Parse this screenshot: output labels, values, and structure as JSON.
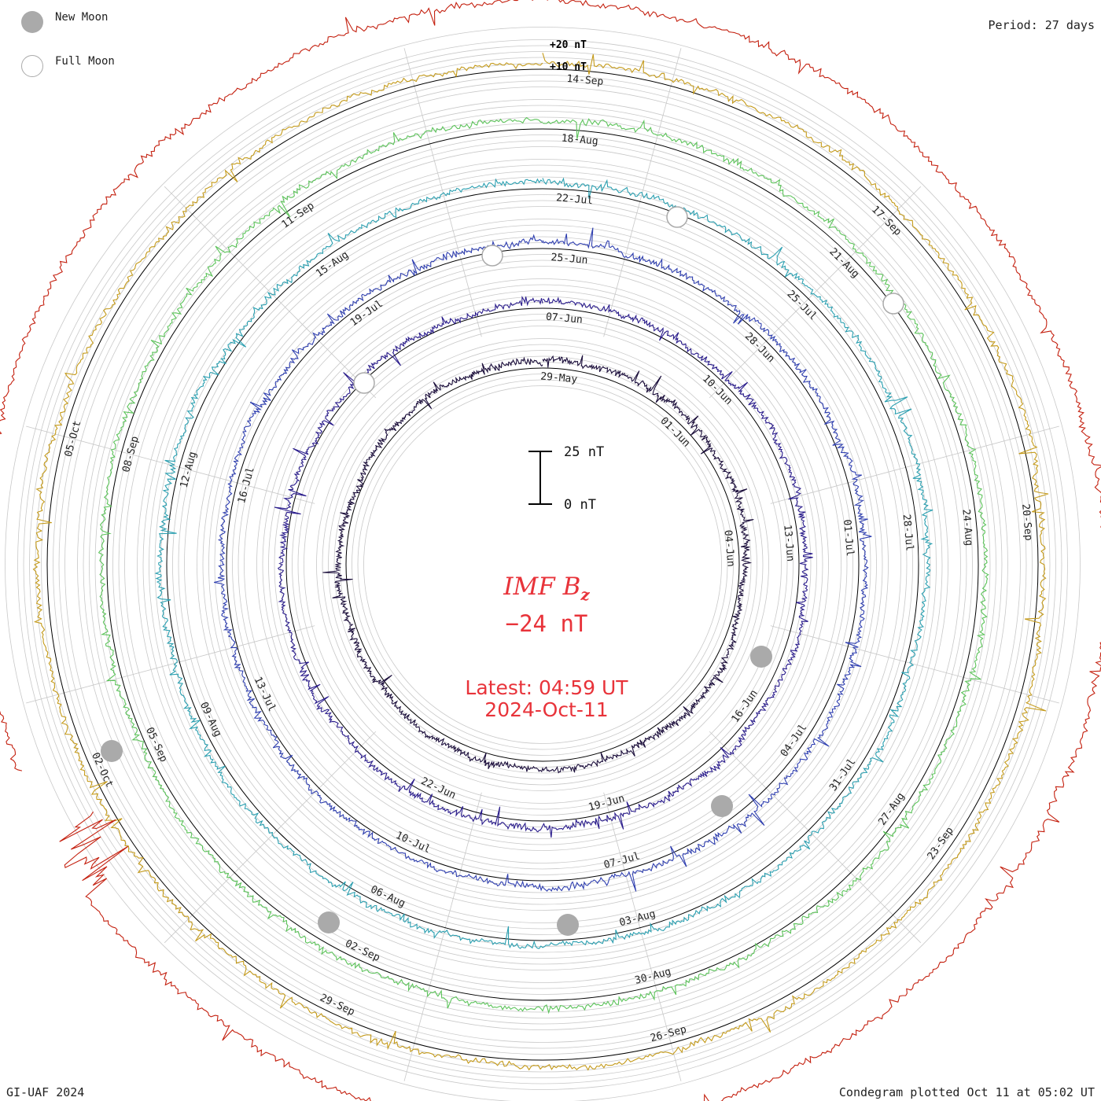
{
  "legend": {
    "new_moon_label": "New Moon",
    "full_moon_label": "Full Moon"
  },
  "period_label": "Period: 27 days",
  "credit": "GI-UAF 2024",
  "plotted_label": "Condegram plotted Oct 11 at 05:02 UT",
  "center": {
    "title_main": "IMF B",
    "title_sub": "z",
    "current_value": "−24 nT",
    "latest_label": "Latest: 04:59 UT",
    "latest_date": "2024-Oct-11"
  },
  "scale_bar": {
    "top_label": "25 nT",
    "bottom_label": "0 nT"
  },
  "colors": {
    "title": "#e8333a",
    "grid": "#c8c8c8",
    "new_moon": "#aaaaaa"
  },
  "chart_data": {
    "type": "condegram-spiral",
    "title": "IMF Bz",
    "quantity": "IMF Bz",
    "units": "nT",
    "period_days": 27,
    "latest_value_nT": -24,
    "scale_labels": [
      "+20 nT",
      "+10 nT"
    ],
    "rotations": [
      {
        "index": 1,
        "color": "#1a0d3a",
        "labels": [
          "29-May",
          "01-Jun",
          "04-Jun"
        ]
      },
      {
        "index": 2,
        "color": "#2a1c8c",
        "labels": [
          "07-Jun",
          "10-Jun",
          "13-Jun",
          "16-Jun",
          "19-Jun",
          "22-Jun"
        ]
      },
      {
        "index": 3,
        "color": "#2f3fb0",
        "labels": [
          "25-Jun",
          "28-Jun",
          "01-Jul",
          "04-Jul",
          "07-Jul",
          "10-Jul",
          "13-Jul",
          "16-Jul",
          "19-Jul"
        ]
      },
      {
        "index": 4,
        "color": "#2a9fb0",
        "labels": [
          "22-Jul",
          "25-Jul",
          "28-Jul",
          "31-Jul",
          "03-Aug",
          "06-Aug",
          "09-Aug",
          "12-Aug",
          "15-Aug"
        ]
      },
      {
        "index": 5,
        "color": "#5cc35a",
        "labels": [
          "18-Aug",
          "21-Aug",
          "24-Aug",
          "27-Aug",
          "30-Aug",
          "02-Sep",
          "05-Sep",
          "08-Sep",
          "11-Sep"
        ]
      },
      {
        "index": 6,
        "color": "#c49a1a",
        "labels": [
          "14-Sep",
          "17-Sep",
          "20-Sep",
          "23-Sep",
          "26-Sep",
          "29-Sep",
          "02-Oct",
          "05-Oct"
        ]
      },
      {
        "index": 7,
        "color": "#c4200f",
        "labels": []
      }
    ],
    "new_moons": [
      "04-Jun",
      "06-Jul",
      "04-Aug",
      "03-Sep",
      "02-Oct"
    ],
    "full_moons": [
      "22-Jun",
      "21-Jul",
      "19-Aug",
      "18-Sep"
    ]
  }
}
